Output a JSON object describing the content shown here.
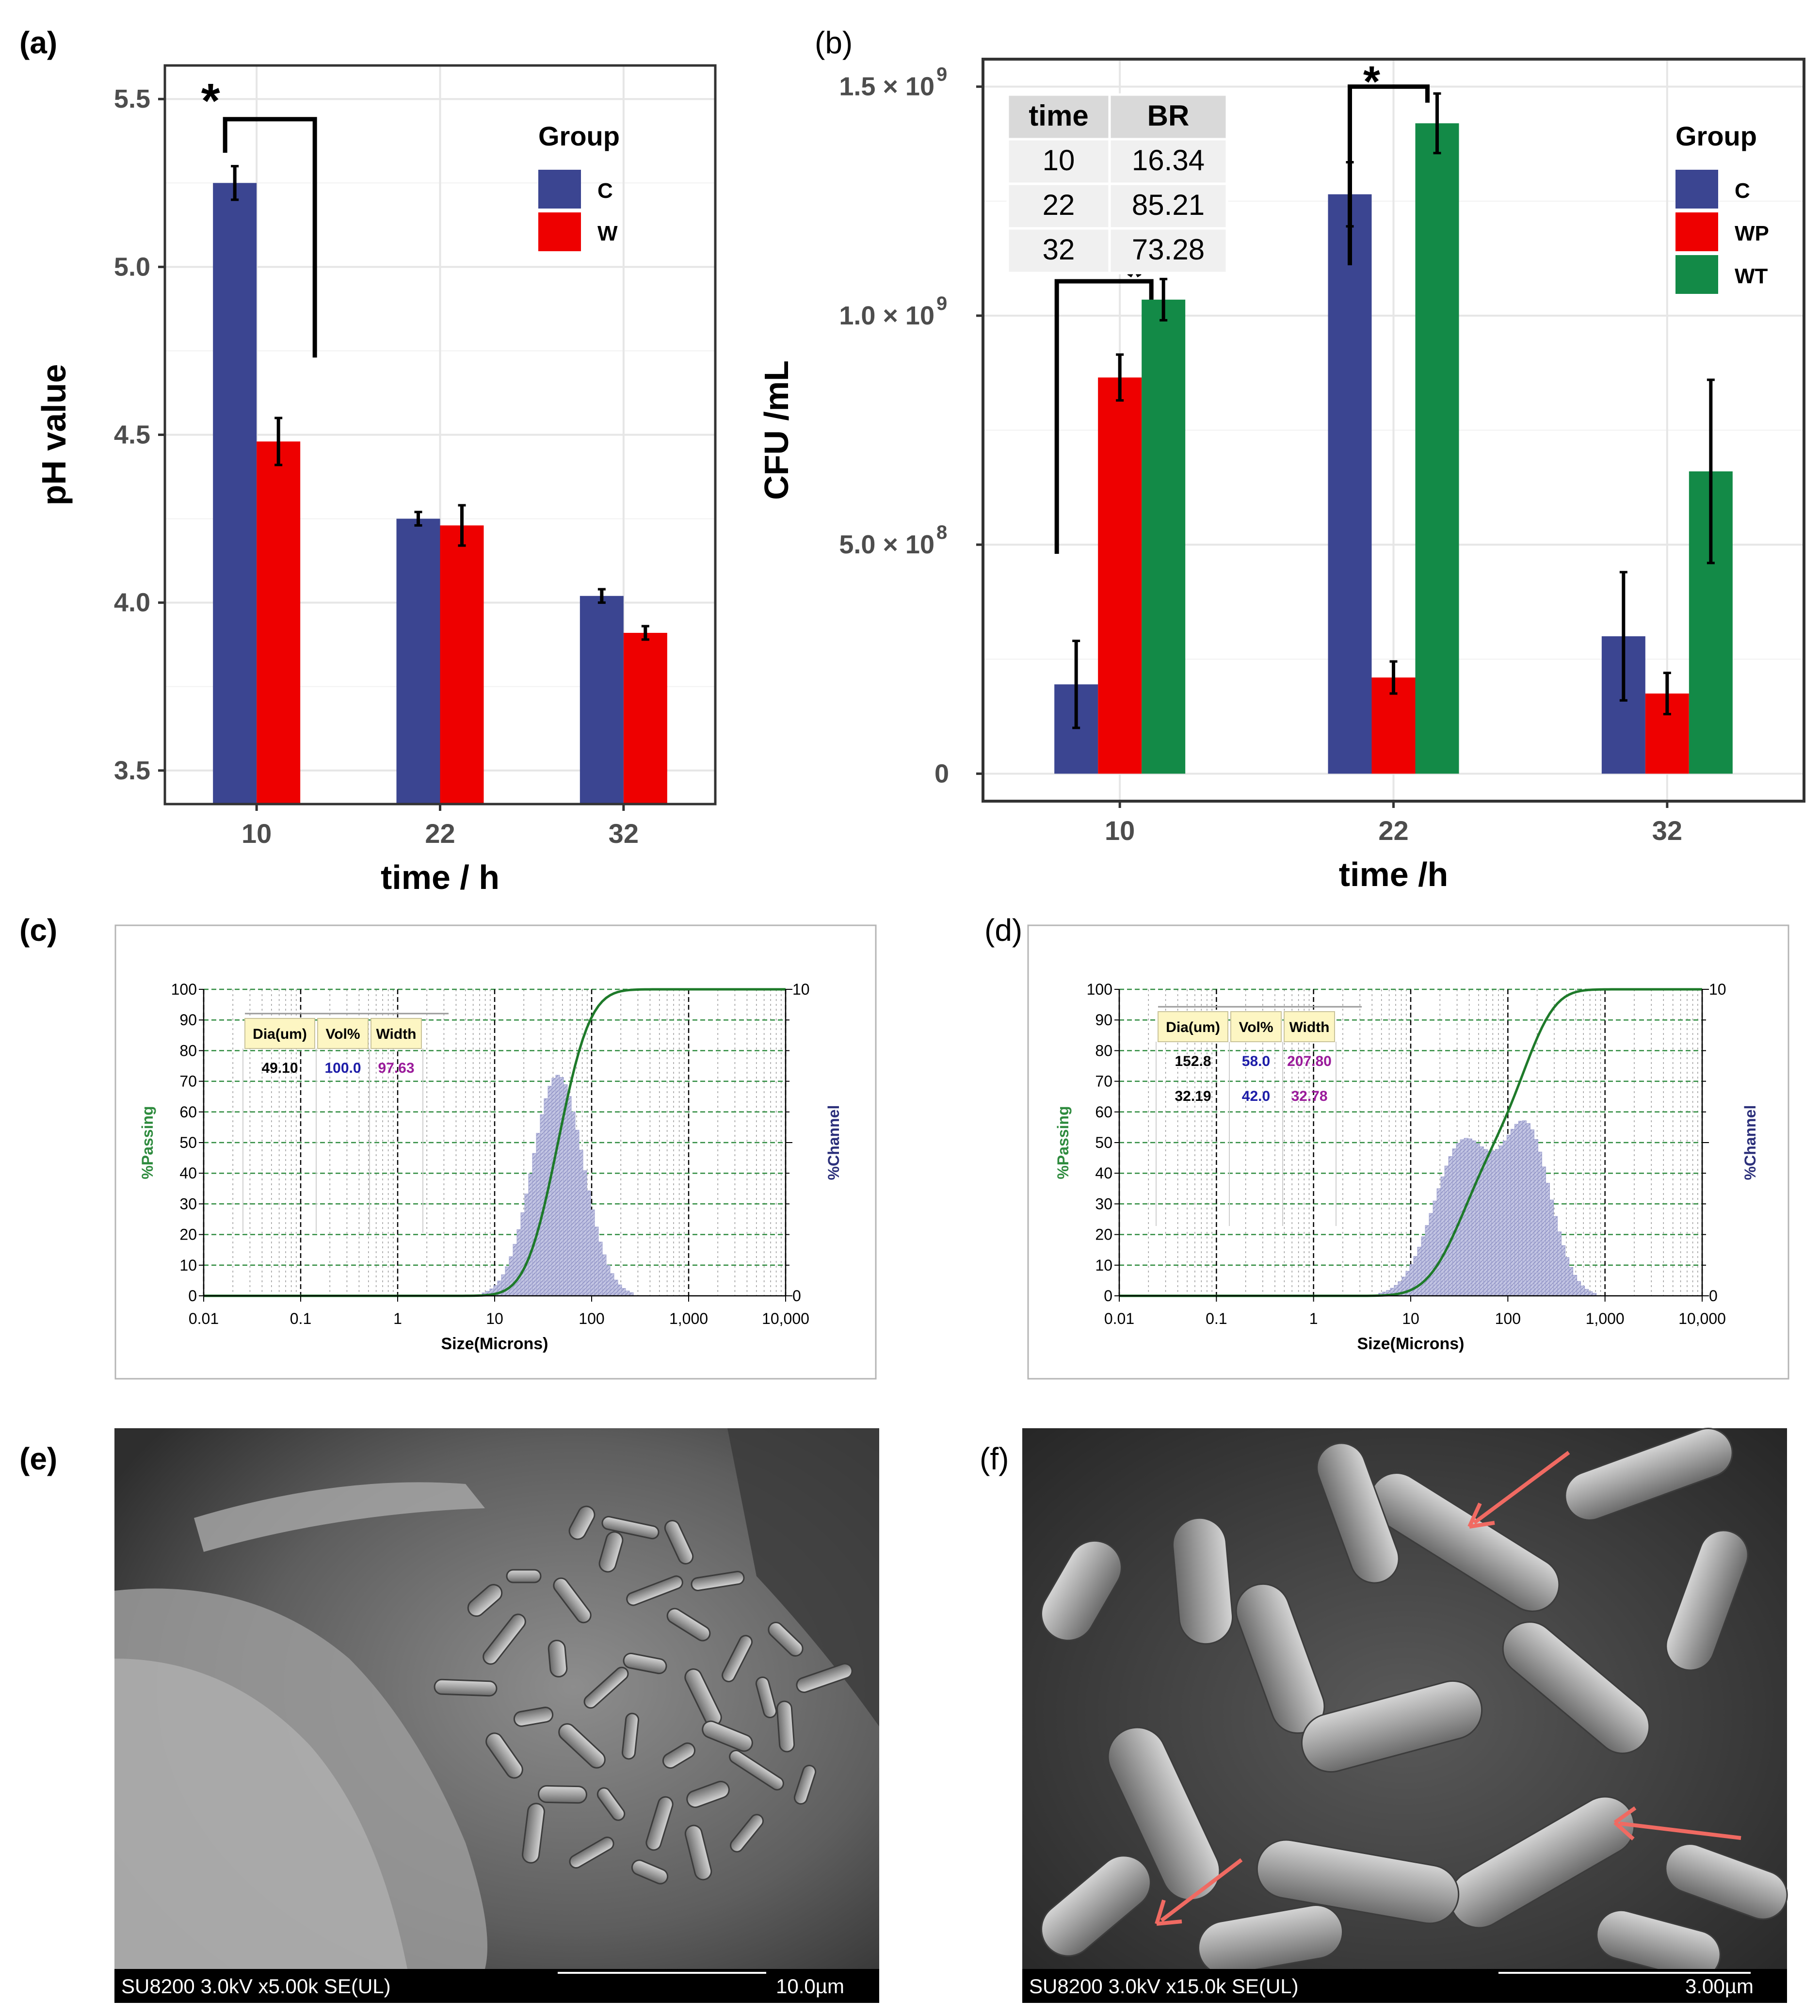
{
  "panel_labels": {
    "a": "(a)",
    "b": "(b)",
    "c": "(c)",
    "d": "(d)",
    "e": "(e)",
    "f": "(f)"
  },
  "colors": {
    "C": "#3b4591",
    "W": "#ee0000",
    "WP": "#ee0000",
    "WT": "#138a47",
    "psd_fill": "#b9bbdc",
    "psd_curve": "#1e7a2a",
    "psd_grid": "#2e8b3e",
    "psd_label": "#2e8b3e",
    "psd_channel": "#2b2f7a"
  },
  "chart_data": [
    {
      "id": "a",
      "type": "bar",
      "title": "",
      "xlabel": "time / h",
      "ylabel": "pH value",
      "categories": [
        "10",
        "22",
        "32"
      ],
      "ylim": [
        3.4,
        5.6
      ],
      "yticks": [
        "3.5",
        "4.0",
        "4.5",
        "5.0",
        "5.5"
      ],
      "ytick_values": [
        3.5,
        4.0,
        4.5,
        5.0,
        5.5
      ],
      "legend_title": "Group",
      "series": [
        {
          "name": "C",
          "values": [
            5.25,
            4.25,
            4.02
          ],
          "errors": [
            0.05,
            0.02,
            0.02
          ]
        },
        {
          "name": "W",
          "values": [
            4.48,
            4.23,
            3.91
          ],
          "errors": [
            0.07,
            0.06,
            0.02
          ]
        }
      ],
      "annotation": "*"
    },
    {
      "id": "b",
      "type": "bar",
      "title": "",
      "xlabel": "time /h",
      "ylabel": "CFU /mL",
      "categories": [
        "10",
        "22",
        "32"
      ],
      "ylim": [
        -60000000,
        1560000000
      ],
      "ytick_values": [
        0,
        500000000,
        1000000000,
        1500000000
      ],
      "ytick_labels": [
        {
          "base": "0",
          "exp": ""
        },
        {
          "base": "5.0 × 10",
          "exp": "8"
        },
        {
          "base": "1.0 × 10",
          "exp": "9"
        },
        {
          "base": "1.5 × 10",
          "exp": "9"
        }
      ],
      "legend_title": "Group",
      "series": [
        {
          "name": "C",
          "values": [
            195000000,
            1265000000,
            300000000
          ],
          "errors": [
            95000000,
            70000000,
            140000000
          ]
        },
        {
          "name": "WP",
          "values": [
            865000000,
            210000000,
            175000000
          ],
          "errors": [
            50000000,
            35000000,
            45000000
          ]
        },
        {
          "name": "WT",
          "values": [
            1035000000,
            1420000000,
            660000000
          ],
          "errors": [
            45000000,
            65000000,
            200000000
          ]
        }
      ],
      "annotation": "*",
      "table": {
        "headers": [
          "time",
          "BR"
        ],
        "rows": [
          [
            "10",
            "16.34"
          ],
          [
            "22",
            "85.21"
          ],
          [
            "32",
            "73.28"
          ]
        ]
      }
    },
    {
      "id": "c",
      "type": "area",
      "xlabel": "Size(Microns)",
      "ylabel_left": "%Passing",
      "ylabel_right": "%Channel",
      "xticks": [
        "0.01",
        "0.1",
        "1",
        "10",
        "100",
        "1,000",
        "10,000"
      ],
      "yticks_left": [
        "0",
        "10",
        "20",
        "30",
        "40",
        "50",
        "60",
        "70",
        "80",
        "90",
        "100"
      ],
      "yticks_right": [
        "0",
        "10"
      ],
      "distribution": {
        "peaks": [
          {
            "center_um": 45,
            "sigma_log10": 0.26,
            "height_pct": 72
          }
        ]
      },
      "table": {
        "headers": [
          "Dia(um)",
          "Vol%",
          "Width"
        ],
        "rows": [
          [
            "49.10",
            "100.0",
            "97.63"
          ]
        ]
      }
    },
    {
      "id": "d",
      "type": "area",
      "xlabel": "Size(Microns)",
      "ylabel_left": "%Passing",
      "ylabel_right": "%Channel",
      "xticks": [
        "0.01",
        "0.1",
        "1",
        "10",
        "100",
        "1,000",
        "10,000"
      ],
      "yticks_left": [
        "0",
        "10",
        "20",
        "30",
        "40",
        "50",
        "60",
        "70",
        "80",
        "90",
        "100"
      ],
      "yticks_right": [
        "0",
        "10"
      ],
      "distribution": {
        "peaks": [
          {
            "center_um": 35,
            "sigma_log10": 0.3,
            "height_pct": 50
          },
          {
            "center_um": 160,
            "sigma_log10": 0.24,
            "height_pct": 52
          }
        ]
      },
      "table": {
        "headers": [
          "Dia(um)",
          "Vol%",
          "Width"
        ],
        "rows": [
          [
            "152.8",
            "58.0",
            "207.80"
          ],
          [
            "32.19",
            "42.0",
            "32.78"
          ]
        ]
      }
    }
  ],
  "micrographs": {
    "e": {
      "caption": "SU8200 3.0kV x5.00k SE(UL)",
      "scale": "10.0µm"
    },
    "f": {
      "caption": "SU8200 3.0kV x15.0k SE(UL)",
      "scale": "3.00µm"
    }
  }
}
